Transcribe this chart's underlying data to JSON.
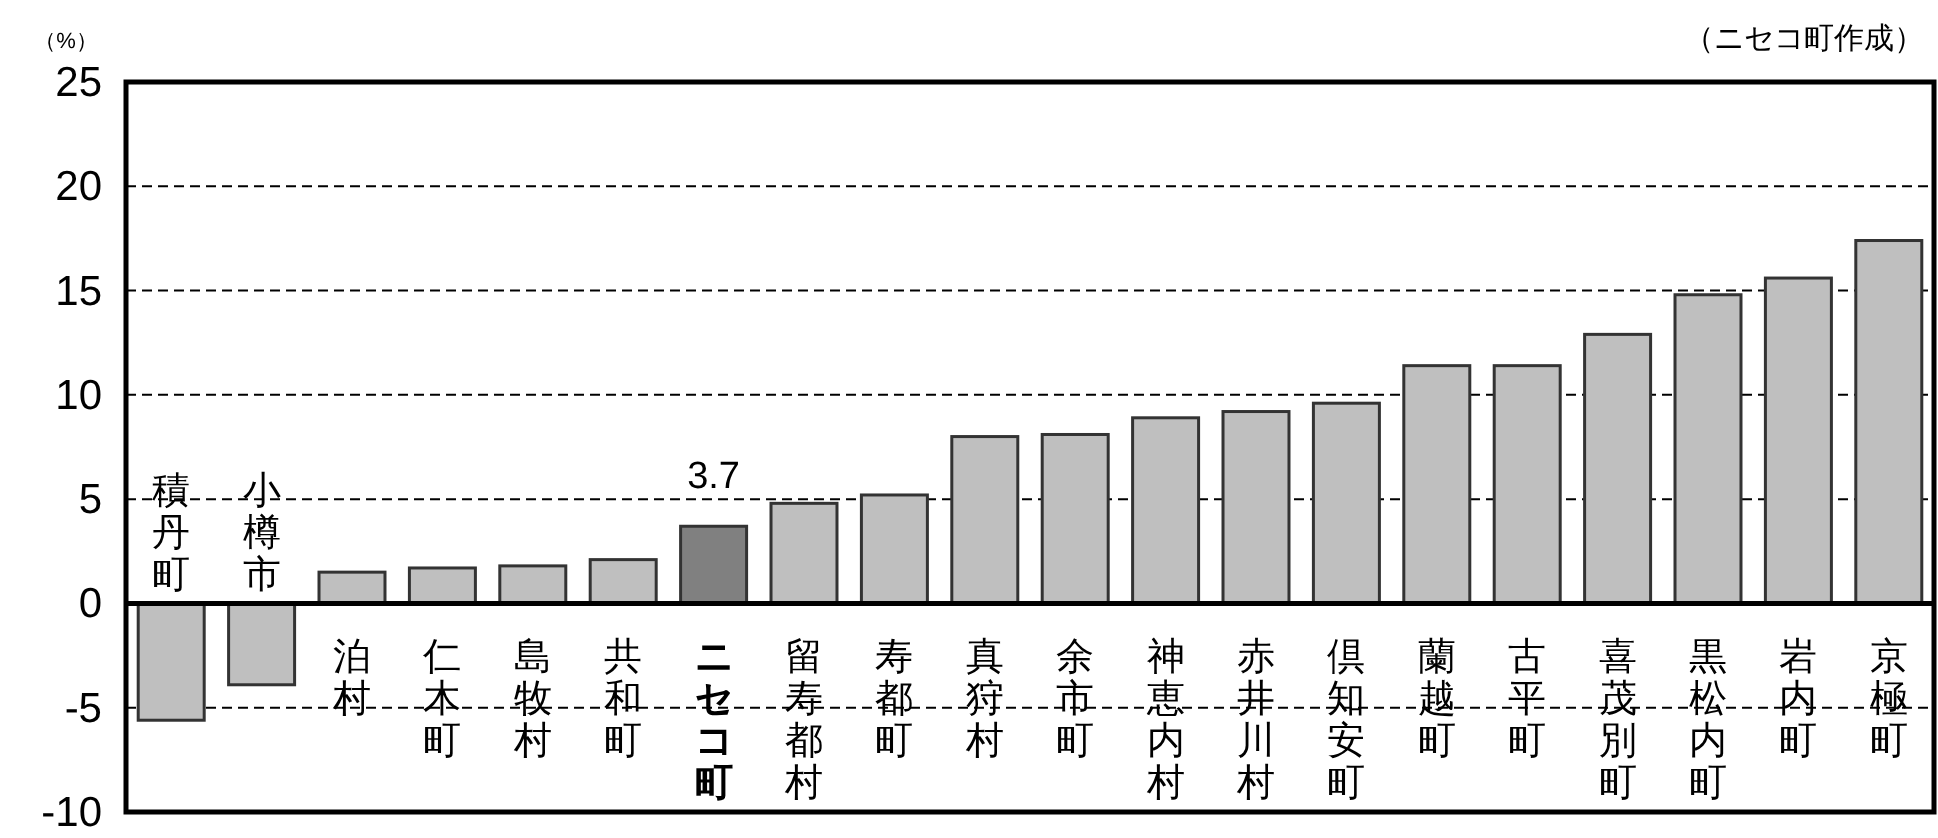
{
  "chart_data": {
    "type": "bar",
    "ylabel": "（%）",
    "annotations": [
      "（ニセコ町作成）"
    ],
    "categories": [
      "積丹町",
      "小樽市",
      "泊村",
      "仁木町",
      "島牧村",
      "共和町",
      "ニセコ町",
      "留寿都村",
      "寿都町",
      "真狩村",
      "余市町",
      "神恵内村",
      "赤井川村",
      "倶知安町",
      "蘭越町",
      "古平町",
      "喜茂別町",
      "黒松内町",
      "岩内町",
      "京極町"
    ],
    "values": [
      -5.6,
      -3.9,
      1.5,
      1.7,
      1.8,
      2.1,
      3.7,
      4.8,
      5.2,
      8.0,
      8.1,
      8.9,
      9.2,
      9.6,
      11.4,
      11.4,
      12.9,
      14.8,
      15.6,
      17.4
    ],
    "colors": [
      "#bfbfbf",
      "#bfbfbf",
      "#bfbfbf",
      "#bfbfbf",
      "#bfbfbf",
      "#bfbfbf",
      "#808080",
      "#bfbfbf",
      "#bfbfbf",
      "#bfbfbf",
      "#bfbfbf",
      "#bfbfbf",
      "#bfbfbf",
      "#bfbfbf",
      "#bfbfbf",
      "#bfbfbf",
      "#bfbfbf",
      "#bfbfbf",
      "#bfbfbf",
      "#bfbfbf"
    ],
    "value_labels": [
      null,
      null,
      null,
      null,
      null,
      null,
      "3.7",
      null,
      null,
      null,
      null,
      null,
      null,
      null,
      null,
      null,
      null,
      null,
      null,
      null
    ],
    "ylim": [
      -10,
      25
    ],
    "yticks": [
      -10,
      -5,
      0,
      5,
      10,
      15,
      20,
      25
    ],
    "grid": "y"
  }
}
